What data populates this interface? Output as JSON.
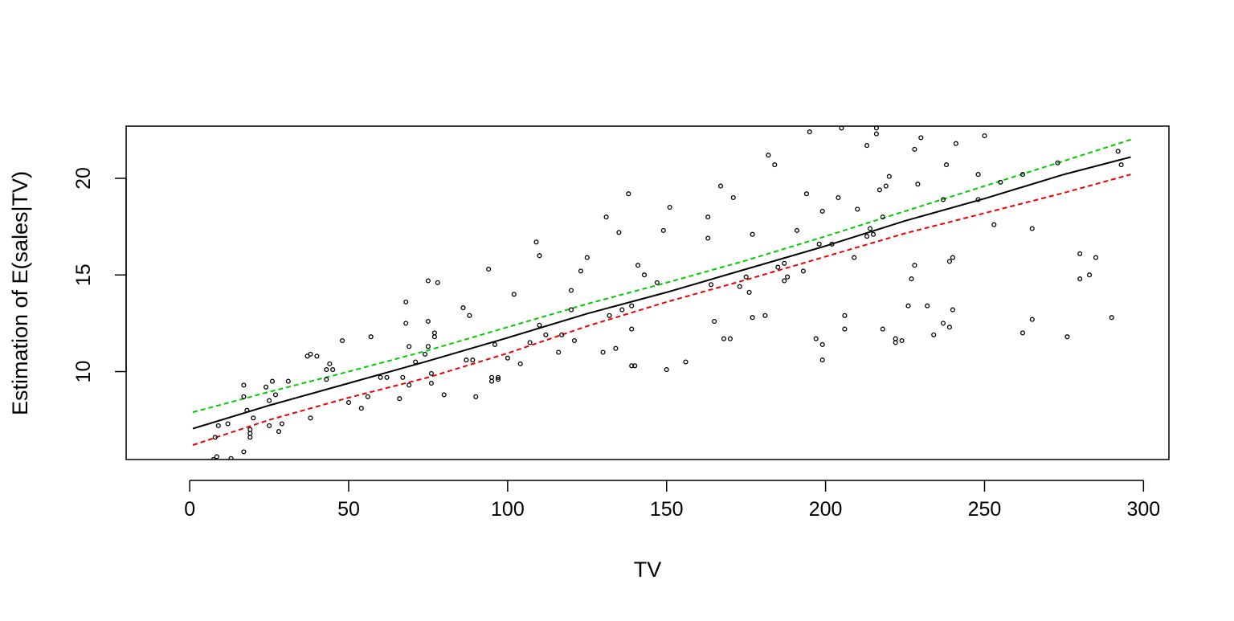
{
  "chart_data": {
    "type": "scatter",
    "title": "",
    "xlabel": "TV",
    "ylabel": "Estimation of E(sales|TV)",
    "xlim": [
      -20,
      308
    ],
    "ylim": [
      5.45,
      22.7
    ],
    "x_ticks": [
      0,
      50,
      100,
      150,
      200,
      250,
      300
    ],
    "y_ticks": [
      10,
      15,
      20
    ],
    "x_tick_labels": [
      "0",
      "50",
      "100",
      "150",
      "200",
      "250",
      "300"
    ],
    "y_tick_labels": [
      "10",
      "15",
      "20"
    ],
    "grid": false,
    "legend": "none",
    "colors": {
      "points": "#000000",
      "estimate": "#000000",
      "upper": "#00cd00",
      "lower": "#ee0000"
    },
    "lines": [
      {
        "role": "estimate",
        "style": "solid",
        "color": "#000000",
        "x": [
          1,
          25,
          50,
          75,
          100,
          125,
          150,
          175,
          200,
          225,
          250,
          275,
          296
        ],
        "y": [
          7.05,
          8.25,
          9.4,
          10.55,
          11.75,
          13.0,
          14.1,
          15.3,
          16.5,
          17.8,
          18.95,
          20.2,
          21.1
        ]
      },
      {
        "role": "upper",
        "style": "dashed",
        "color": "#00cd00",
        "x": [
          1,
          25,
          50,
          75,
          100,
          125,
          150,
          175,
          200,
          225,
          250,
          275,
          296
        ],
        "y": [
          7.9,
          8.95,
          10.0,
          11.1,
          12.3,
          13.5,
          14.6,
          15.75,
          17.0,
          18.3,
          19.6,
          20.9,
          22.0
        ]
      },
      {
        "role": "lower",
        "style": "dashed",
        "color": "#ee0000",
        "x": [
          1,
          25,
          50,
          75,
          100,
          125,
          150,
          175,
          200,
          225,
          250,
          275,
          296
        ],
        "y": [
          6.2,
          7.5,
          8.65,
          9.7,
          10.95,
          12.35,
          13.6,
          14.75,
          15.95,
          17.15,
          18.2,
          19.25,
          20.2
        ]
      }
    ],
    "points": [
      [
        7.5,
        5.45
      ],
      [
        8.5,
        5.6
      ],
      [
        13,
        5.5
      ],
      [
        17,
        5.85
      ],
      [
        8,
        6.6
      ],
      [
        9,
        7.2
      ],
      [
        12,
        7.3
      ],
      [
        17,
        8.7
      ],
      [
        17,
        9.3
      ],
      [
        18,
        8.0
      ],
      [
        19,
        7.0
      ],
      [
        19,
        6.6
      ],
      [
        20,
        7.6
      ],
      [
        19,
        6.8
      ],
      [
        24,
        9.2
      ],
      [
        25,
        8.5
      ],
      [
        25,
        7.2
      ],
      [
        26,
        9.5
      ],
      [
        27,
        8.8
      ],
      [
        28,
        6.9
      ],
      [
        29,
        7.3
      ],
      [
        31,
        9.5
      ],
      [
        37,
        10.8
      ],
      [
        38,
        10.9
      ],
      [
        38,
        7.6
      ],
      [
        40,
        10.8
      ],
      [
        43,
        9.6
      ],
      [
        43,
        10.1
      ],
      [
        44,
        10.4
      ],
      [
        45,
        10.1
      ],
      [
        48,
        11.6
      ],
      [
        50,
        8.4
      ],
      [
        54,
        8.1
      ],
      [
        56,
        8.7
      ],
      [
        57,
        11.8
      ],
      [
        60,
        9.7
      ],
      [
        62,
        9.7
      ],
      [
        66,
        8.6
      ],
      [
        67,
        9.7
      ],
      [
        68,
        12.5
      ],
      [
        68,
        13.6
      ],
      [
        69,
        11.3
      ],
      [
        69,
        9.3
      ],
      [
        71,
        10.5
      ],
      [
        74,
        10.9
      ],
      [
        75,
        14.7
      ],
      [
        75,
        12.6
      ],
      [
        75,
        11.3
      ],
      [
        76,
        9.9
      ],
      [
        76,
        9.4
      ],
      [
        77,
        12.0
      ],
      [
        77,
        11.8
      ],
      [
        78,
        14.6
      ],
      [
        80,
        8.8
      ],
      [
        86,
        13.3
      ],
      [
        87,
        10.6
      ],
      [
        88,
        12.9
      ],
      [
        89,
        10.6
      ],
      [
        90,
        8.7
      ],
      [
        94,
        15.3
      ],
      [
        95,
        9.7
      ],
      [
        95,
        9.5
      ],
      [
        96,
        11.4
      ],
      [
        97,
        9.6
      ],
      [
        97,
        9.7
      ],
      [
        100,
        10.7
      ],
      [
        102,
        14.0
      ],
      [
        104,
        10.4
      ],
      [
        107,
        11.5
      ],
      [
        109,
        16.7
      ],
      [
        110,
        12.4
      ],
      [
        110,
        16.0
      ],
      [
        112,
        11.9
      ],
      [
        116,
        11.0
      ],
      [
        117,
        11.9
      ],
      [
        120,
        14.2
      ],
      [
        120,
        13.2
      ],
      [
        121,
        11.6
      ],
      [
        123,
        15.2
      ],
      [
        125,
        15.9
      ],
      [
        130,
        11.0
      ],
      [
        131,
        18.0
      ],
      [
        132,
        12.9
      ],
      [
        134,
        11.2
      ],
      [
        135,
        17.2
      ],
      [
        136,
        13.2
      ],
      [
        138,
        19.2
      ],
      [
        139,
        10.3
      ],
      [
        139,
        12.2
      ],
      [
        139,
        13.4
      ],
      [
        140,
        10.3
      ],
      [
        141,
        15.5
      ],
      [
        143,
        15.0
      ],
      [
        147,
        14.6
      ],
      [
        149,
        17.3
      ],
      [
        150,
        10.1
      ],
      [
        151,
        18.5
      ],
      [
        156,
        10.5
      ],
      [
        163,
        18.0
      ],
      [
        163,
        16.9
      ],
      [
        164,
        14.5
      ],
      [
        165,
        12.6
      ],
      [
        167,
        19.6
      ],
      [
        168,
        11.7
      ],
      [
        170,
        11.7
      ],
      [
        171,
        19.0
      ],
      [
        173,
        14.4
      ],
      [
        175,
        14.9
      ],
      [
        176,
        14.1
      ],
      [
        177,
        17.1
      ],
      [
        177,
        12.8
      ],
      [
        181,
        12.9
      ],
      [
        182,
        21.2
      ],
      [
        184,
        20.7
      ],
      [
        185,
        15.4
      ],
      [
        187,
        15.6
      ],
      [
        187,
        14.7
      ],
      [
        188,
        14.9
      ],
      [
        191,
        17.3
      ],
      [
        193,
        15.2
      ],
      [
        194,
        19.2
      ],
      [
        195,
        22.4
      ],
      [
        197,
        11.7
      ],
      [
        198,
        16.6
      ],
      [
        199,
        18.3
      ],
      [
        199,
        11.4
      ],
      [
        199,
        10.6
      ],
      [
        202,
        16.6
      ],
      [
        204,
        19.0
      ],
      [
        205,
        22.6
      ],
      [
        206,
        12.2
      ],
      [
        206,
        12.9
      ],
      [
        209,
        15.9
      ],
      [
        210,
        18.4
      ],
      [
        213,
        21.7
      ],
      [
        213,
        17.0
      ],
      [
        214,
        17.4
      ],
      [
        215,
        17.1
      ],
      [
        216,
        22.6
      ],
      [
        216,
        22.3
      ],
      [
        217,
        19.4
      ],
      [
        218,
        18.0
      ],
      [
        218,
        12.2
      ],
      [
        219,
        19.6
      ],
      [
        220,
        20.1
      ],
      [
        222,
        11.7
      ],
      [
        222,
        11.5
      ],
      [
        224,
        11.6
      ],
      [
        226,
        13.4
      ],
      [
        227,
        14.8
      ],
      [
        228,
        15.5
      ],
      [
        228,
        21.5
      ],
      [
        229,
        19.7
      ],
      [
        230,
        22.1
      ],
      [
        232,
        13.4
      ],
      [
        234,
        11.9
      ],
      [
        237,
        12.5
      ],
      [
        237,
        18.9
      ],
      [
        238,
        20.7
      ],
      [
        239,
        15.7
      ],
      [
        239,
        12.3
      ],
      [
        240,
        15.9
      ],
      [
        240,
        13.2
      ],
      [
        241,
        21.8
      ],
      [
        248,
        20.2
      ],
      [
        248,
        18.9
      ],
      [
        250,
        22.2
      ],
      [
        253,
        17.6
      ],
      [
        255,
        19.8
      ],
      [
        262,
        12.0
      ],
      [
        262,
        20.2
      ],
      [
        265,
        17.4
      ],
      [
        265,
        12.7
      ],
      [
        273,
        20.8
      ],
      [
        276,
        11.8
      ],
      [
        280,
        14.8
      ],
      [
        280,
        16.1
      ],
      [
        283,
        15.0
      ],
      [
        285,
        15.9
      ],
      [
        290,
        12.8
      ],
      [
        292,
        21.4
      ],
      [
        293,
        20.7
      ]
    ]
  }
}
